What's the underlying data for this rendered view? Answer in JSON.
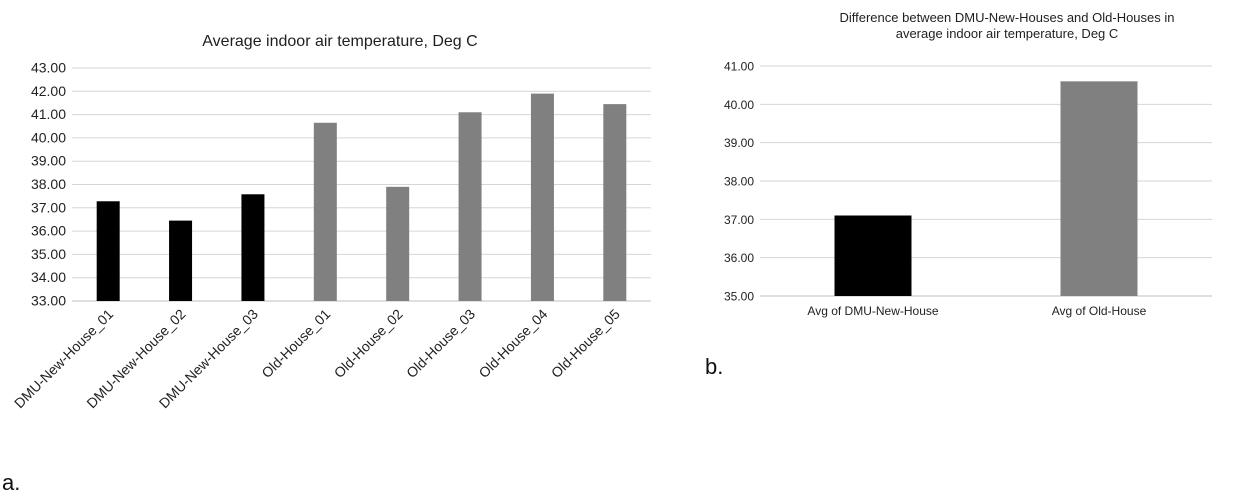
{
  "chart_data": [
    {
      "type": "bar",
      "panel_label": "a.",
      "title": "Average indoor air temperature, Deg C",
      "categories": [
        "DMU-New-House_01",
        "DMU-New-House_02",
        "DMU-New-House_03",
        "Old-House_01",
        "Old-House_02",
        "Old-House_03",
        "Old-House_04",
        "Old-House_05"
      ],
      "values": [
        37.28,
        36.45,
        37.58,
        40.65,
        37.9,
        41.1,
        41.9,
        41.45
      ],
      "bar_colors": [
        "#000000",
        "#000000",
        "#000000",
        "#808080",
        "#808080",
        "#808080",
        "#808080",
        "#808080"
      ],
      "y_ticks": [
        "33.00",
        "34.00",
        "35.00",
        "36.00",
        "37.00",
        "38.00",
        "39.00",
        "40.00",
        "41.00",
        "42.00",
        "43.00"
      ],
      "ylim": [
        33,
        43
      ],
      "grid": true,
      "legend": "none"
    },
    {
      "type": "bar",
      "panel_label": "b.",
      "title": "Difference between DMU-New-Houses and Old-Houses in average indoor air temperature, Deg C",
      "title_lines": [
        "Difference between DMU-New-Houses and Old-Houses in",
        "average indoor air temperature, Deg C"
      ],
      "categories": [
        "Avg of DMU-New-House",
        "Avg of Old-House"
      ],
      "values": [
        37.1,
        40.6
      ],
      "bar_colors": [
        "#000000",
        "#808080"
      ],
      "y_ticks": [
        "35.00",
        "36.00",
        "37.00",
        "38.00",
        "39.00",
        "40.00",
        "41.00"
      ],
      "ylim": [
        35,
        41
      ],
      "grid": true,
      "legend": "none"
    }
  ]
}
